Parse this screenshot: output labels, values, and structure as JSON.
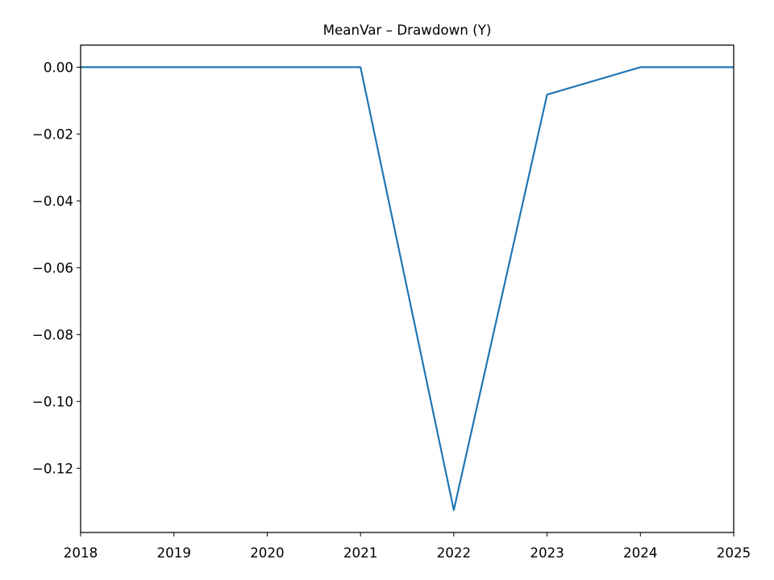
{
  "chart_data": {
    "type": "line",
    "title": "MeanVar – Drawdown (Y)",
    "xlabel": "",
    "ylabel": "",
    "x": [
      "2018",
      "2019",
      "2020",
      "2021",
      "2022",
      "2023",
      "2024",
      "2025"
    ],
    "series": [
      {
        "color": "#1f77b4",
        "points": [
          {
            "x": "2018",
            "y": 0.0
          },
          {
            "x": "2021",
            "y": 0.0
          },
          {
            "x": "2022",
            "y": -0.1325
          },
          {
            "x": "2023",
            "y": -0.0082
          },
          {
            "x": "2024",
            "y": 0.0
          },
          {
            "x": "2025",
            "y": 0.0
          }
        ]
      }
    ],
    "xlim": [
      "2018",
      "2025"
    ],
    "ylim": [
      -0.1392,
      0.0066
    ],
    "xticks": [
      "2018",
      "2019",
      "2020",
      "2021",
      "2022",
      "2023",
      "2024",
      "2025"
    ],
    "yticks": [
      {
        "value": 0.0,
        "label": "0.00"
      },
      {
        "value": -0.02,
        "label": "−0.02"
      },
      {
        "value": -0.04,
        "label": "−0.04"
      },
      {
        "value": -0.06,
        "label": "−0.06"
      },
      {
        "value": -0.08,
        "label": "−0.08"
      },
      {
        "value": -0.1,
        "label": "−0.10"
      },
      {
        "value": -0.12,
        "label": "−0.12"
      }
    ],
    "grid": false,
    "legend": "none"
  }
}
